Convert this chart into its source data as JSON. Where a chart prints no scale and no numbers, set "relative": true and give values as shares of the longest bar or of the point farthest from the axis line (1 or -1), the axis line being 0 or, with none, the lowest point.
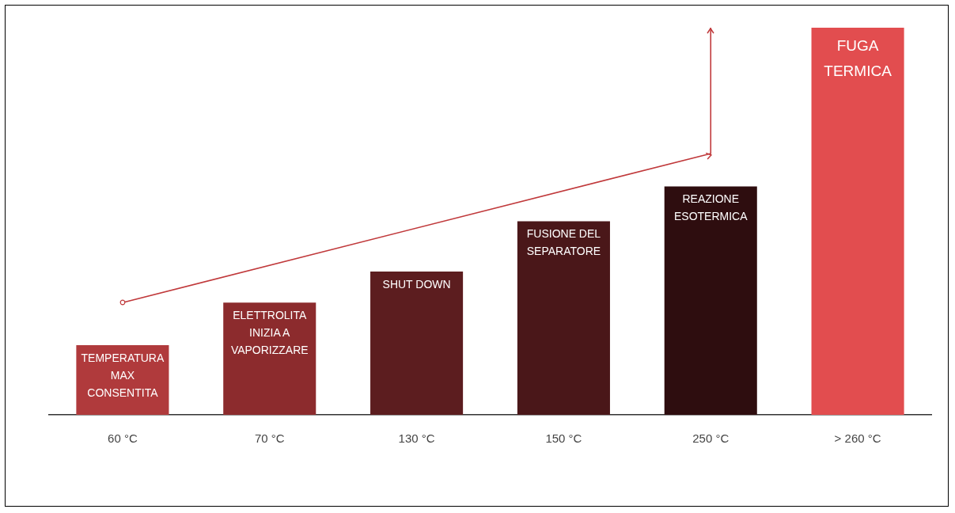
{
  "chart_data": {
    "type": "bar",
    "relative": true,
    "categories": [
      "60 °C",
      "70 °C",
      "130 °C",
      "150 °C",
      "250 °C",
      "> 260 °C"
    ],
    "series": [
      {
        "values": [
          0.18,
          0.29,
          0.37,
          0.5,
          0.59,
          1
        ],
        "colors": [
          "#b03a3c",
          "#8c2b2d",
          "#5c1d1f",
          "#4a1719",
          "#2e0d0f",
          "#e24d4f"
        ]
      },
      {
        "type": "line",
        "x": [
          "60 °C",
          "250 °C",
          "250 °C"
        ],
        "values": [
          0.29,
          0.675,
          1
        ],
        "color": "#c0393b"
      }
    ],
    "annotations": [
      "TEMPERATURA\nMAX\nCONSENTITA",
      "ELETTROLITA\nINIZIA A\nVAPORIZZARE",
      "SHUT DOWN",
      "FUSIONE DEL\nSEPARATORE",
      "REAZIONE\nESOTERMICA",
      "FUGA\nTERMICA"
    ],
    "grid": false,
    "legend": false
  }
}
